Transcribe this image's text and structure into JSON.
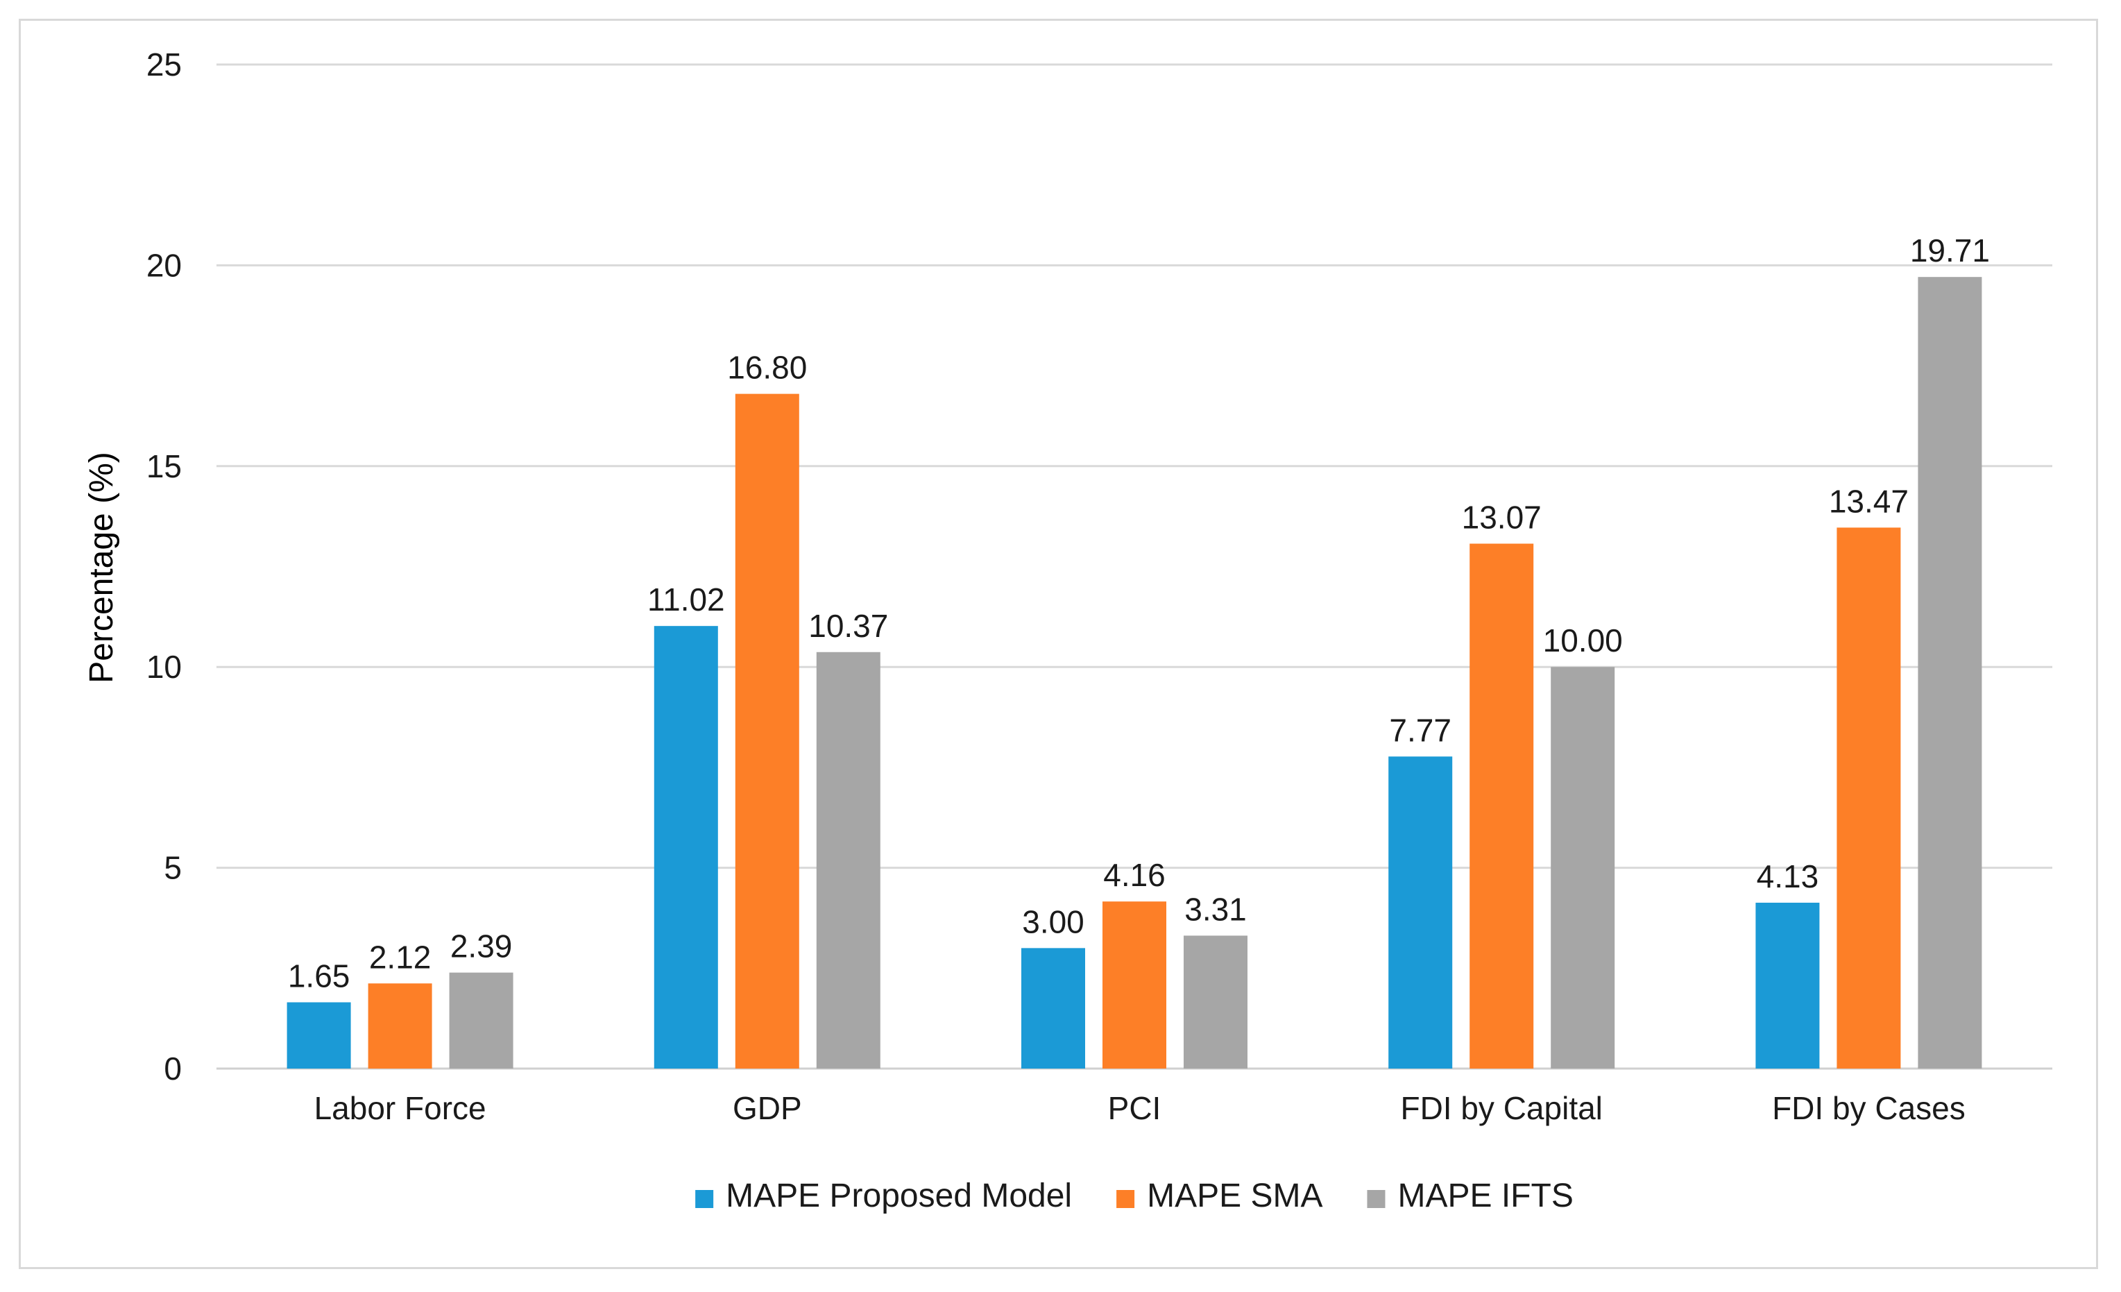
{
  "chart_data": {
    "type": "bar",
    "title": "",
    "xlabel": "",
    "ylabel": "Percentage (%)",
    "ylim": [
      0,
      25
    ],
    "yticks": [
      0,
      5,
      10,
      15,
      20,
      25
    ],
    "grid": true,
    "legend_position": "bottom",
    "categories": [
      "Labor Force",
      "GDP",
      "PCI",
      "FDI by Capital",
      "FDI by Cases"
    ],
    "series": [
      {
        "name": "MAPE Proposed Model",
        "color": "#1b9ad6",
        "values": [
          1.65,
          11.02,
          3.0,
          7.77,
          4.13
        ],
        "labels": [
          "1.65",
          "11.02",
          "3.00",
          "7.77",
          "4.13"
        ]
      },
      {
        "name": "MAPE SMA",
        "color": "#fd7f27",
        "values": [
          2.12,
          16.8,
          4.16,
          13.07,
          13.47
        ],
        "labels": [
          "2.12",
          "16.80",
          "4.16",
          "13.07",
          "13.47"
        ]
      },
      {
        "name": "MAPE IFTS",
        "color": "#a6a6a6",
        "values": [
          2.39,
          10.37,
          3.31,
          10.0,
          19.71
        ],
        "labels": [
          "2.39",
          "10.37",
          "3.31",
          "10.00",
          "19.71"
        ]
      }
    ]
  }
}
